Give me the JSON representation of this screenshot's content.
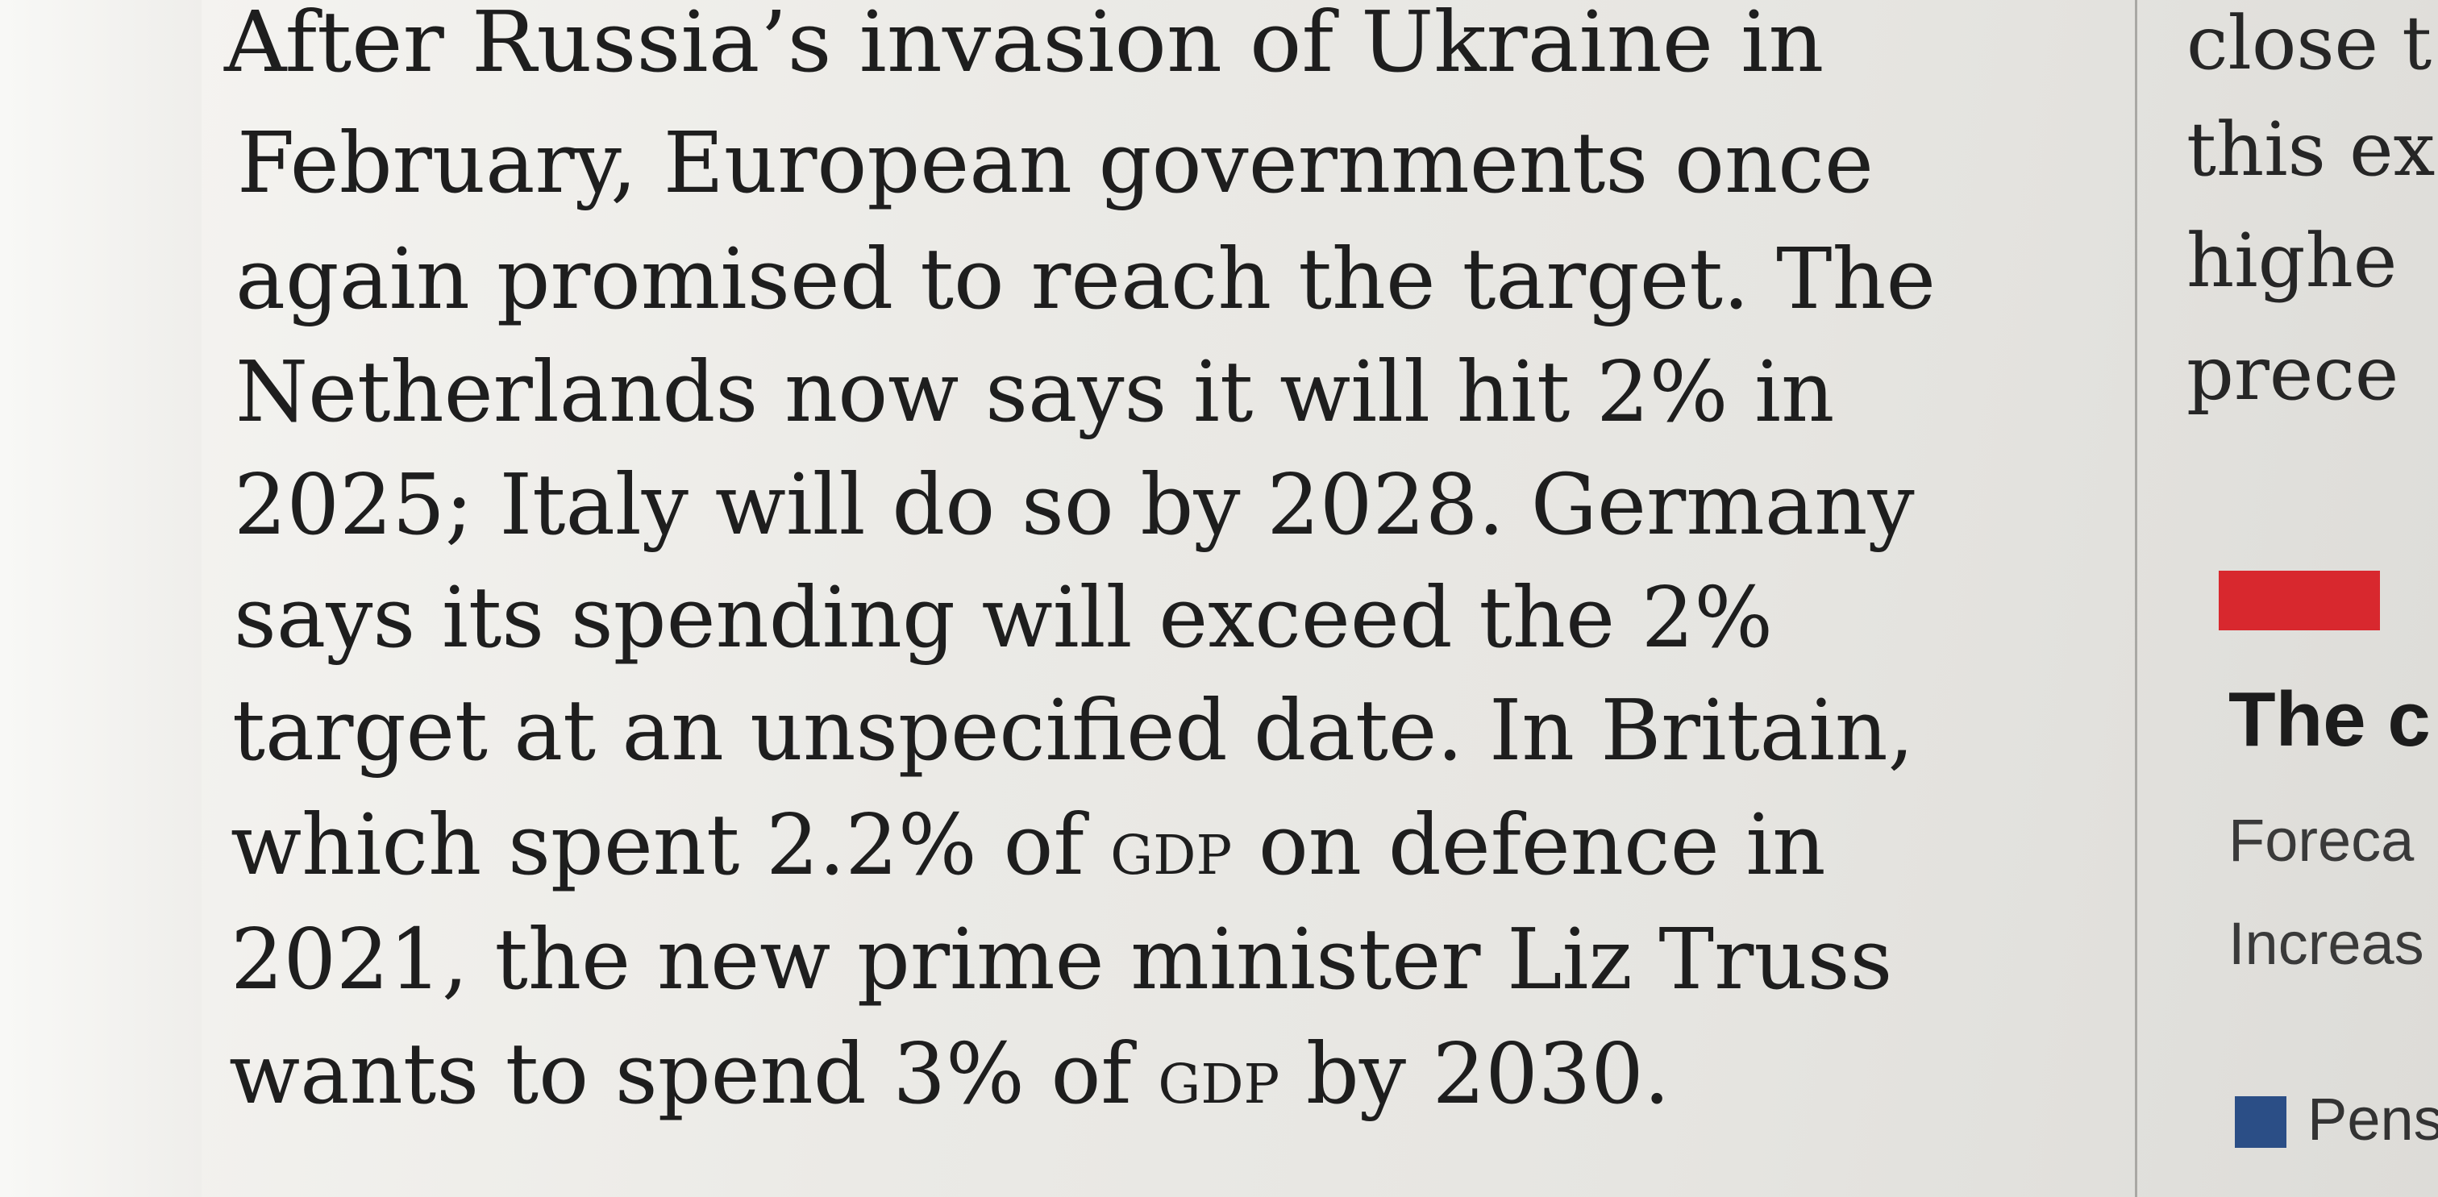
{
  "article": {
    "lines": [
      "After Russia’s invasion of Ukraine in",
      "February, European governments once",
      "again promised to reach the target. The",
      "Netherlands now says it will hit 2% in",
      "2025; Italy will do so by 2028. Germany",
      "says its spending will exceed the 2%",
      "target at an unspecified date. In Britain,",
      "which spent 2.2% of ",
      "gdp",
      " on defence in",
      "2021, the new prime minister Liz Truss",
      "wants to spend 3% of ",
      "gdp",
      " by 2030."
    ]
  },
  "side_column": {
    "text_lines": [
      "close t",
      "this ex",
      "highe",
      "prece"
    ],
    "chart_title": "The c",
    "chart_subtitle_1": "Foreca",
    "chart_subtitle_2": "Increas",
    "legend_label": "Pens",
    "accent_color": "#d8282e",
    "legend_color": "#2b4e86"
  }
}
